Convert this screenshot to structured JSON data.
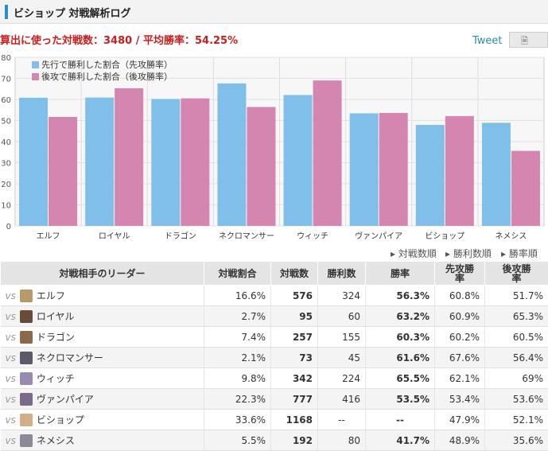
{
  "header": {
    "title": "ビショップ 対戦解析ログ"
  },
  "summary": {
    "text": "算出に使った対戦数：3480 / 平均勝率：54.25%"
  },
  "share": {
    "tweet_label": "Tweet",
    "icon": "document-icon"
  },
  "colors": {
    "first": "#7fbfe9",
    "second": "#d485b0",
    "accent": "#2a8fc0",
    "rate_orange": "#e07a1f"
  },
  "chart_data": {
    "type": "bar",
    "categories": [
      "エルフ",
      "ロイヤル",
      "ドラゴン",
      "ネクロマンサー",
      "ウィッチ",
      "ヴァンパイア",
      "ビショップ",
      "ネメシス"
    ],
    "series": [
      {
        "name": "先行で勝利した割合（先攻勝率）",
        "values": [
          60.8,
          60.9,
          60.2,
          67.6,
          62.1,
          53.4,
          47.9,
          48.9
        ]
      },
      {
        "name": "後攻で勝利した割合（後攻勝率）",
        "values": [
          51.7,
          65.3,
          60.5,
          56.4,
          69,
          53.6,
          52.1,
          35.6
        ]
      }
    ],
    "yticks": [
      0,
      10,
      20,
      30,
      40,
      50,
      60,
      70,
      80
    ],
    "ylim": [
      0,
      80
    ],
    "legend_position": "top-left",
    "grid": true
  },
  "sort": {
    "by_games": "対戦数順",
    "by_wins": "勝利数順",
    "by_rate": "勝率順"
  },
  "table": {
    "headers": {
      "leader": "対戦相手のリーダー",
      "share": "対戦割合",
      "games": "対戦数",
      "wins": "勝利数",
      "rate": "勝率",
      "first_line1": "先攻勝",
      "first_line2": "率",
      "second_line1": "後攻勝",
      "second_line2": "率"
    },
    "vs": "vs",
    "rows": [
      {
        "vs": "vs",
        "leader": "エルフ",
        "share": "16.6%",
        "games": "576",
        "wins": "324",
        "rate": "56.3%",
        "first": "60.8%",
        "second": "51.7%"
      },
      {
        "vs": "vs",
        "leader": "ロイヤル",
        "share": "2.7%",
        "games": "95",
        "wins": "60",
        "rate": "63.2%",
        "first": "60.9%",
        "second": "65.3%"
      },
      {
        "vs": "vs",
        "leader": "ドラゴン",
        "share": "7.4%",
        "games": "257",
        "wins": "155",
        "rate": "60.3%",
        "first": "60.2%",
        "second": "60.5%"
      },
      {
        "vs": "vs",
        "leader": "ネクロマンサー",
        "share": "2.1%",
        "games": "73",
        "wins": "45",
        "rate": "61.6%",
        "first": "67.6%",
        "second": "56.4%"
      },
      {
        "vs": "vs",
        "leader": "ウィッチ",
        "share": "9.8%",
        "games": "342",
        "wins": "224",
        "rate": "65.5%",
        "first": "62.1%",
        "second": "69%"
      },
      {
        "vs": "vs",
        "leader": "ヴァンパイア",
        "share": "22.3%",
        "games": "777",
        "wins": "416",
        "rate": "53.5%",
        "first": "53.4%",
        "second": "53.6%"
      },
      {
        "vs": "vs",
        "leader": "ビショップ",
        "share": "33.6%",
        "games": "1168",
        "wins": "--",
        "rate": "--",
        "first": "47.9%",
        "second": "52.1%"
      },
      {
        "vs": "vs",
        "leader": "ネメシス",
        "share": "5.5%",
        "games": "192",
        "wins": "80",
        "rate": "41.7%",
        "first": "48.9%",
        "second": "35.6%"
      }
    ],
    "avatar_colors": [
      "#b89a6a",
      "#6a4a3a",
      "#8a6a4a",
      "#5a5a6a",
      "#9a8ab0",
      "#7a6a8a",
      "#d0b08a",
      "#8a8a9a"
    ]
  }
}
